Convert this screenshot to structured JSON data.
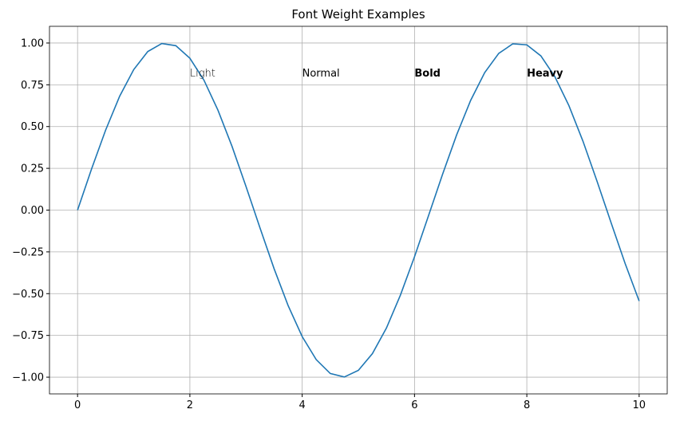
{
  "chart_data": {
    "type": "line",
    "title": "Font Weight Examples",
    "x": [
      0,
      0.25,
      0.5,
      0.75,
      1,
      1.25,
      1.5,
      1.75,
      2,
      2.25,
      2.5,
      2.75,
      3,
      3.25,
      3.5,
      3.75,
      4,
      4.25,
      4.5,
      4.75,
      5,
      5.25,
      5.5,
      5.75,
      6,
      6.25,
      6.5,
      6.75,
      7,
      7.25,
      7.5,
      7.75,
      8,
      8.25,
      8.5,
      8.75,
      9,
      9.25,
      9.5,
      9.75,
      10
    ],
    "series": [
      {
        "color": "#1f77b4",
        "values": [
          0,
          0.247,
          0.479,
          0.682,
          0.841,
          0.949,
          0.997,
          0.984,
          0.909,
          0.778,
          0.598,
          0.382,
          0.141,
          -0.108,
          -0.351,
          -0.572,
          -0.757,
          -0.895,
          -0.978,
          -0.999,
          -0.959,
          -0.859,
          -0.706,
          -0.508,
          -0.279,
          -0.033,
          0.215,
          0.45,
          0.657,
          0.823,
          0.938,
          0.995,
          0.989,
          0.923,
          0.798,
          0.625,
          0.412,
          0.173,
          -0.075,
          -0.319,
          -0.544
        ]
      }
    ],
    "xlim": [
      -0.5,
      10.5
    ],
    "ylim": [
      -1.1,
      1.1
    ],
    "xticks": [
      0,
      2,
      4,
      6,
      8,
      10
    ],
    "yticks": [
      {
        "value": -1,
        "label": "−1.00"
      },
      {
        "value": -0.75,
        "label": "−0.75"
      },
      {
        "value": -0.5,
        "label": "−0.50"
      },
      {
        "value": -0.25,
        "label": "−0.25"
      },
      {
        "value": 0,
        "label": "0.00"
      },
      {
        "value": 0.25,
        "label": "0.25"
      },
      {
        "value": 0.5,
        "label": "0.50"
      },
      {
        "value": 0.75,
        "label": "0.75"
      },
      {
        "value": 1,
        "label": "1.00"
      }
    ],
    "grid": true,
    "annotations": [
      {
        "text": "Light",
        "x": 2,
        "y": 0.8,
        "weight": 300
      },
      {
        "text": "Normal",
        "x": 4,
        "y": 0.8,
        "weight": 400
      },
      {
        "text": "Bold",
        "x": 6,
        "y": 0.8,
        "weight": 700
      },
      {
        "text": "Heavy",
        "x": 8,
        "y": 0.8,
        "weight": 900
      }
    ]
  }
}
